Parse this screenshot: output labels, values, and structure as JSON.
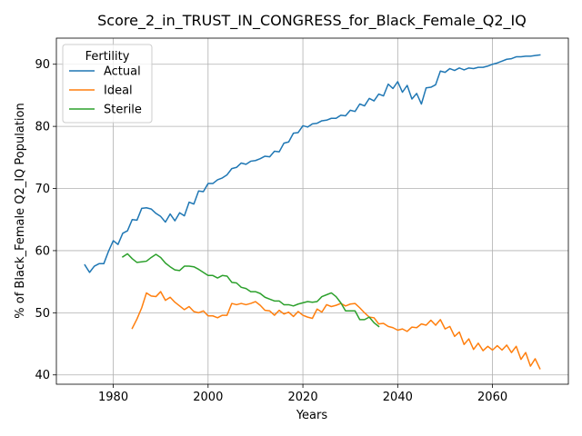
{
  "chart_data": {
    "type": "line",
    "title": "Score_2_in_TRUST_IN_CONGRESS_for_Black_Female_Q2_IQ",
    "xlabel": "Years",
    "ylabel": "% of Black_Female Q2_IQ Population",
    "xlim": [
      1968,
      2076
    ],
    "ylim": [
      38.5,
      94.2
    ],
    "xticks": [
      1980,
      2000,
      2020,
      2040,
      2060
    ],
    "yticks": [
      40,
      50,
      60,
      70,
      80,
      90
    ],
    "grid": true,
    "legend": {
      "title": "Fertility",
      "placement": "top-left"
    },
    "series": [
      {
        "name": "Actual",
        "color": "#1f77b4",
        "x": [
          1974,
          1975,
          1976,
          1977,
          1978,
          1979,
          1980,
          1981,
          1982,
          1983,
          1984,
          1985,
          1986,
          1987,
          1988,
          1989,
          1990,
          1991,
          1992,
          1993,
          1994,
          1995,
          1996,
          1997,
          1998,
          1999,
          2000,
          2001,
          2002,
          2003,
          2004,
          2005,
          2006,
          2007,
          2008,
          2009,
          2010,
          2011,
          2012,
          2013,
          2014,
          2015,
          2016,
          2017,
          2018,
          2019,
          2020,
          2021,
          2022,
          2023,
          2024,
          2025,
          2026,
          2027,
          2028,
          2029,
          2030,
          2031,
          2032,
          2033,
          2034,
          2035,
          2036,
          2037,
          2038,
          2039,
          2040,
          2041,
          2042,
          2043,
          2044,
          2045,
          2046,
          2047,
          2048,
          2049,
          2050,
          2051,
          2052,
          2053,
          2054,
          2055,
          2056,
          2057,
          2058,
          2059,
          2060,
          2061,
          2062,
          2063,
          2064,
          2065,
          2066,
          2067,
          2068,
          2069,
          2070
        ],
        "values": [
          57.7,
          56.5,
          57.5,
          57.9,
          57.9,
          59.9,
          61.6,
          61.0,
          62.8,
          63.2,
          65.0,
          64.9,
          66.8,
          66.9,
          66.7,
          66.0,
          65.5,
          64.6,
          65.9,
          64.8,
          66.1,
          65.6,
          67.8,
          67.5,
          69.6,
          69.5,
          70.8,
          70.8,
          71.4,
          71.7,
          72.2,
          73.2,
          73.4,
          74.1,
          73.9,
          74.4,
          74.5,
          74.8,
          75.2,
          75.1,
          76.0,
          75.9,
          77.3,
          77.5,
          78.9,
          79.0,
          80.1,
          79.9,
          80.4,
          80.5,
          80.9,
          81.0,
          81.3,
          81.3,
          81.8,
          81.7,
          82.6,
          82.4,
          83.6,
          83.3,
          84.5,
          84.1,
          85.2,
          84.9,
          86.8,
          86.1,
          87.2,
          85.5,
          86.6,
          84.4,
          85.3,
          83.6,
          86.2,
          86.3,
          86.7,
          88.9,
          88.7,
          89.3,
          89.0,
          89.4,
          89.1,
          89.4,
          89.3,
          89.5,
          89.5,
          89.7,
          90.0,
          90.2,
          90.5,
          90.8,
          90.9,
          91.2,
          91.2,
          91.3,
          91.3,
          91.4,
          91.5
        ]
      },
      {
        "name": "Ideal",
        "color": "#ff7f0e",
        "x": [
          1984,
          1985,
          1986,
          1987,
          1988,
          1989,
          1990,
          1991,
          1992,
          1993,
          1994,
          1995,
          1996,
          1997,
          1998,
          1999,
          2000,
          2001,
          2002,
          2003,
          2004,
          2005,
          2006,
          2007,
          2008,
          2009,
          2010,
          2011,
          2012,
          2013,
          2014,
          2015,
          2016,
          2017,
          2018,
          2019,
          2020,
          2021,
          2022,
          2023,
          2024,
          2025,
          2026,
          2027,
          2028,
          2029,
          2030,
          2031,
          2032,
          2033,
          2034,
          2035,
          2036,
          2037,
          2038,
          2039,
          2040,
          2041,
          2042,
          2043,
          2044,
          2045,
          2046,
          2047,
          2048,
          2049,
          2050,
          2051,
          2052,
          2053,
          2054,
          2055,
          2056,
          2057,
          2058,
          2059,
          2060,
          2061,
          2062,
          2063,
          2064,
          2065,
          2066,
          2067,
          2068,
          2069,
          2070
        ],
        "values": [
          47.5,
          49.0,
          50.8,
          53.2,
          52.7,
          52.6,
          53.4,
          52.0,
          52.5,
          51.7,
          51.1,
          50.5,
          51.0,
          50.2,
          50.0,
          50.3,
          49.5,
          49.5,
          49.2,
          49.6,
          49.6,
          51.5,
          51.3,
          51.5,
          51.3,
          51.5,
          51.8,
          51.2,
          50.4,
          50.3,
          49.6,
          50.4,
          49.8,
          50.1,
          49.4,
          50.2,
          49.6,
          49.3,
          49.1,
          50.6,
          50.1,
          51.3,
          51.0,
          51.2,
          51.5,
          51.1,
          51.4,
          51.5,
          50.8,
          50.0,
          49.3,
          49.2,
          48.2,
          48.3,
          47.8,
          47.6,
          47.2,
          47.4,
          47.0,
          47.7,
          47.6,
          48.2,
          48.0,
          48.8,
          48.0,
          48.9,
          47.4,
          47.8,
          46.2,
          46.9,
          44.9,
          45.8,
          44.1,
          45.1,
          43.9,
          44.6,
          44.0,
          44.7,
          44.0,
          44.8,
          43.6,
          44.6,
          42.5,
          43.6,
          41.4,
          42.6,
          41.0
        ]
      },
      {
        "name": "Sterile",
        "color": "#2ca02c",
        "x": [
          1982,
          1983,
          1984,
          1985,
          1986,
          1987,
          1988,
          1989,
          1990,
          1991,
          1992,
          1993,
          1994,
          1995,
          1996,
          1997,
          1998,
          1999,
          2000,
          2001,
          2002,
          2003,
          2004,
          2005,
          2006,
          2007,
          2008,
          2009,
          2010,
          2011,
          2012,
          2013,
          2014,
          2015,
          2016,
          2017,
          2018,
          2019,
          2020,
          2021,
          2022,
          2023,
          2024,
          2025,
          2026,
          2027,
          2028,
          2029,
          2030,
          2031,
          2032,
          2033,
          2034,
          2035,
          2036
        ],
        "values": [
          59.0,
          59.5,
          58.7,
          58.1,
          58.2,
          58.3,
          58.9,
          59.4,
          58.9,
          58.0,
          57.4,
          56.9,
          56.8,
          57.5,
          57.5,
          57.4,
          57.0,
          56.5,
          56.0,
          56.0,
          55.6,
          56.0,
          55.9,
          54.9,
          54.8,
          54.1,
          53.9,
          53.4,
          53.4,
          53.1,
          52.5,
          52.2,
          51.9,
          51.9,
          51.3,
          51.3,
          51.1,
          51.4,
          51.6,
          51.8,
          51.7,
          51.8,
          52.6,
          52.9,
          53.2,
          52.6,
          51.6,
          50.3,
          50.3,
          50.3,
          48.9,
          48.9,
          49.3,
          48.4,
          47.8
        ]
      }
    ]
  }
}
